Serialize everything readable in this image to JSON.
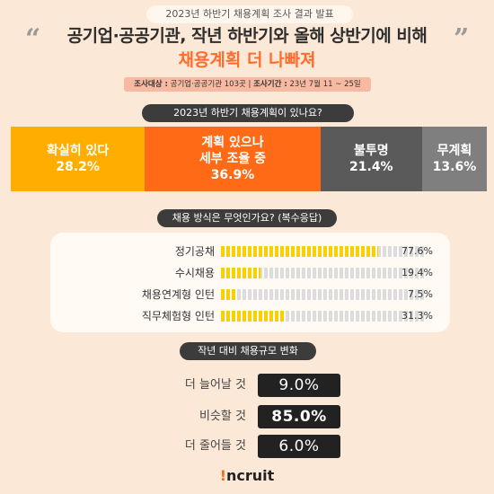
{
  "top_tag": "2023년 하반기 채용계획 조사 결과 발표",
  "headline": {
    "open_quote": "“",
    "close_quote": "”",
    "line1": "공기업·공공기관, 작년 하반기와 올해 상반기에 비해",
    "line2": "채용계획 더 나빠져"
  },
  "survey_info": {
    "target_label": "조사대상 :",
    "target_value": "공기업·공공기관 103곳",
    "separator": "|",
    "period_label": "조사기간 :",
    "period_value": "23년 7월 11 ~ 25일"
  },
  "brand": {
    "icon": "!",
    "name": "ncruit"
  },
  "colors": {
    "background": "#fbe8d6",
    "accent": "#ff6a16",
    "yellow": "#ffae00",
    "dark": "#3c3c3c"
  },
  "chart_data": [
    {
      "type": "bar",
      "title": "2023년 하반기 채용계획이 있나요?",
      "stacked": true,
      "categories": [
        "확실히 있다",
        "계획 있으나 세부 조율 중",
        "불투명",
        "무계획"
      ],
      "label_lines": [
        [
          "확실히 있다"
        ],
        [
          "계획 있으나",
          "세부 조율 중"
        ],
        [
          "불투명"
        ],
        [
          "무계획"
        ]
      ],
      "values": [
        28.2,
        36.9,
        21.4,
        13.6
      ],
      "value_labels": [
        "28.2%",
        "36.9%",
        "21.4%",
        "13.6%"
      ]
    },
    {
      "type": "bar",
      "title": "채용 방식은 무엇인가요? (복수응답)",
      "orientation": "horizontal",
      "categories": [
        "정기공채",
        "수시채용",
        "채용연계형 인턴",
        "직무체험형 인턴"
      ],
      "values": [
        77.6,
        19.4,
        7.5,
        31.3
      ],
      "value_labels": [
        "77.6%",
        "19.4%",
        "7.5%",
        "31.3%"
      ],
      "xlim": [
        0,
        100
      ]
    },
    {
      "type": "table",
      "title": "작년 대비 채용규모 변화",
      "categories": [
        "더 늘어날 것",
        "비슷할 것",
        "더 줄어들 것"
      ],
      "values": [
        9.0,
        85.0,
        6.0
      ],
      "value_labels": [
        "9.0%",
        "85.0%",
        "6.0%"
      ]
    }
  ]
}
